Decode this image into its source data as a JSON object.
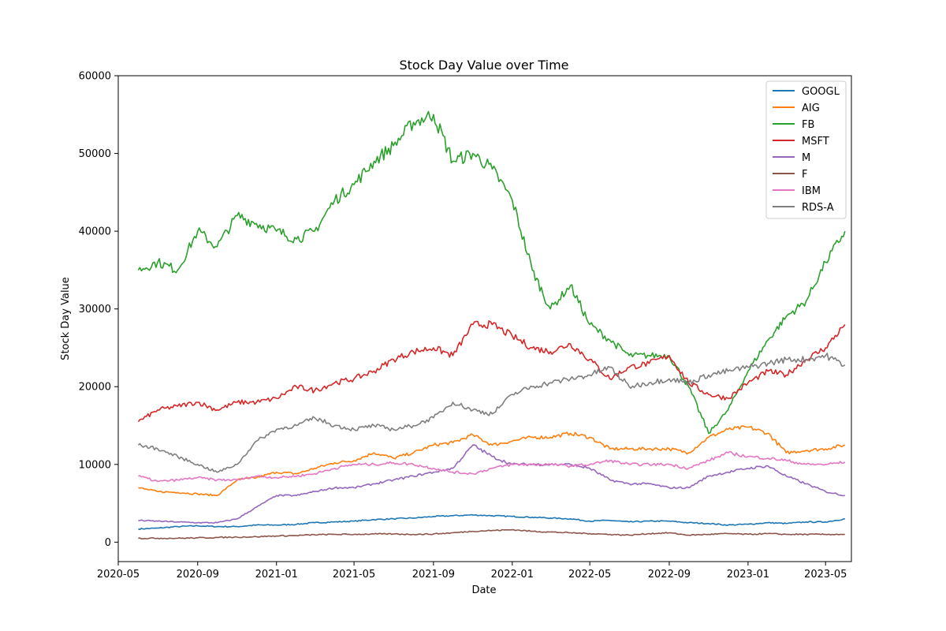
{
  "chart_data": {
    "type": "line",
    "title": "Stock Day Value over Time",
    "xlabel": "Date",
    "ylabel": "Stock Day Value",
    "xlim": [
      "2020-05-01",
      "2023-06-10"
    ],
    "ylim": [
      -2500,
      60000
    ],
    "x_ticks": [
      "2020-05",
      "2020-09",
      "2021-01",
      "2021-05",
      "2021-09",
      "2022-01",
      "2022-05",
      "2022-09",
      "2023-01",
      "2023-05"
    ],
    "y_ticks": [
      0,
      10000,
      20000,
      30000,
      40000,
      50000,
      60000
    ],
    "grid": false,
    "legend_position": "top-right",
    "x": [
      "2020-06-01",
      "2020-07-01",
      "2020-08-01",
      "2020-09-01",
      "2020-10-01",
      "2020-11-01",
      "2020-12-01",
      "2021-01-01",
      "2021-02-01",
      "2021-03-01",
      "2021-04-01",
      "2021-05-01",
      "2021-06-01",
      "2021-07-01",
      "2021-08-01",
      "2021-09-01",
      "2021-10-01",
      "2021-11-01",
      "2021-12-01",
      "2022-01-01",
      "2022-02-01",
      "2022-03-01",
      "2022-04-01",
      "2022-05-01",
      "2022-06-01",
      "2022-07-01",
      "2022-08-01",
      "2022-09-01",
      "2022-10-01",
      "2022-11-01",
      "2022-12-01",
      "2023-01-01",
      "2023-02-01",
      "2023-03-01",
      "2023-04-01",
      "2023-05-01",
      "2023-05-31"
    ],
    "series": [
      {
        "name": "GOOGL",
        "color": "#1f77b4",
        "values": [
          1700,
          1800,
          2000,
          2100,
          2000,
          2000,
          2200,
          2200,
          2300,
          2500,
          2600,
          2700,
          2900,
          3000,
          3100,
          3300,
          3400,
          3500,
          3400,
          3300,
          3200,
          3100,
          3000,
          2700,
          2800,
          2600,
          2700,
          2700,
          2500,
          2400,
          2200,
          2300,
          2500,
          2400,
          2600,
          2600,
          3000
        ]
      },
      {
        "name": "AIG",
        "color": "#ff7f0e",
        "values": [
          7000,
          6500,
          6400,
          6200,
          6000,
          8000,
          8300,
          9000,
          8800,
          9500,
          10200,
          10500,
          11500,
          10800,
          11500,
          12500,
          12800,
          13800,
          12500,
          13000,
          13500,
          13500,
          14000,
          13500,
          12000,
          12000,
          12000,
          12000,
          11500,
          13500,
          14500,
          14800,
          14000,
          11500,
          11800,
          12000,
          12500
        ]
      },
      {
        "name": "FB",
        "color": "#2ca02c",
        "values": [
          35000,
          36000,
          35000,
          40000,
          38000,
          42000,
          41000,
          40000,
          39000,
          40000,
          44000,
          46000,
          49000,
          51000,
          54000,
          55000,
          49000,
          50000,
          48000,
          44000,
          35000,
          30000,
          33000,
          28000,
          26000,
          24000,
          24000,
          24000,
          20000,
          14000,
          17000,
          22000,
          26000,
          29000,
          31000,
          36000,
          40000
        ]
      },
      {
        "name": "MSFT",
        "color": "#d62728",
        "values": [
          15500,
          17000,
          17500,
          18000,
          17000,
          18000,
          18000,
          18500,
          20000,
          19500,
          20500,
          21000,
          22000,
          23500,
          24500,
          25000,
          24000,
          28000,
          28000,
          26500,
          25000,
          24500,
          25500,
          23500,
          21000,
          22500,
          23000,
          24000,
          20500,
          19000,
          18500,
          20500,
          22000,
          21500,
          23500,
          25000,
          28000
        ]
      },
      {
        "name": "M",
        "color": "#9467bd",
        "values": [
          2800,
          2700,
          2600,
          2500,
          2500,
          3000,
          4500,
          6000,
          6000,
          6500,
          7000,
          7000,
          7500,
          8000,
          8500,
          9000,
          9500,
          12500,
          11000,
          10000,
          10000,
          10000,
          10000,
          9500,
          8000,
          7500,
          7500,
          7000,
          7000,
          8500,
          9000,
          9500,
          9800,
          8500,
          7500,
          6500,
          6000
        ]
      },
      {
        "name": "F",
        "color": "#8c564b",
        "values": [
          500,
          500,
          500,
          550,
          600,
          650,
          700,
          800,
          850,
          950,
          1000,
          1000,
          1050,
          1050,
          1000,
          1050,
          1200,
          1400,
          1500,
          1600,
          1400,
          1300,
          1200,
          1100,
          1000,
          900,
          1100,
          1200,
          900,
          1000,
          1100,
          1000,
          1100,
          1000,
          1000,
          1000,
          1000
        ]
      },
      {
        "name": "IBM",
        "color": "#e377c2",
        "values": [
          8500,
          7800,
          8000,
          8300,
          8000,
          8000,
          8500,
          8300,
          8500,
          8800,
          9500,
          10000,
          10000,
          10200,
          10000,
          9500,
          9000,
          8800,
          9500,
          10000,
          10000,
          10000,
          9800,
          10000,
          10500,
          10000,
          10000,
          10000,
          9500,
          10500,
          11500,
          11000,
          10800,
          10500,
          10000,
          10000,
          10300
        ]
      },
      {
        "name": "RDS-A",
        "color": "#7f7f7f",
        "values": [
          12500,
          12000,
          11000,
          10000,
          9000,
          10000,
          13000,
          14500,
          15000,
          16000,
          15000,
          14500,
          15000,
          14500,
          15000,
          16000,
          18000,
          17000,
          16500,
          19000,
          20000,
          20500,
          21000,
          21500,
          22500,
          20000,
          20500,
          21000,
          20500,
          21500,
          22000,
          22500,
          23000,
          23500,
          23500,
          24000,
          22800
        ]
      }
    ]
  }
}
